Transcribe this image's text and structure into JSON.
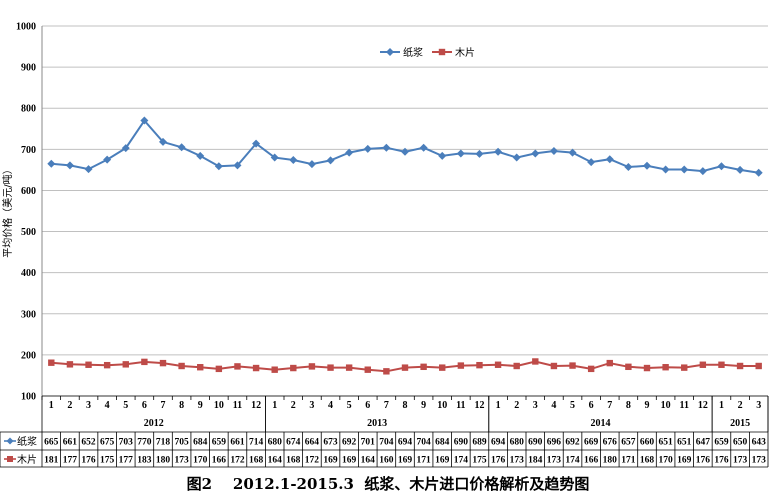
{
  "chart_data": {
    "type": "line",
    "title": "图2    2012.1-2015.3  纸浆、木片进口价格解析及趋势图",
    "ylabel": "平均价格（美元/吨）",
    "ylim": [
      100,
      1000
    ],
    "yticks": [
      100,
      200,
      300,
      400,
      500,
      600,
      700,
      800,
      900,
      1000
    ],
    "categories": [
      "1",
      "2",
      "3",
      "4",
      "5",
      "6",
      "7",
      "8",
      "9",
      "10",
      "11",
      "12",
      "1",
      "2",
      "3",
      "4",
      "5",
      "6",
      "7",
      "8",
      "9",
      "10",
      "11",
      "12",
      "1",
      "2",
      "3",
      "4",
      "5",
      "6",
      "7",
      "8",
      "9",
      "10",
      "11",
      "12",
      "1",
      "2",
      "3"
    ],
    "years": [
      {
        "label": "2012",
        "start": 0,
        "count": 12
      },
      {
        "label": "2013",
        "start": 12,
        "count": 12
      },
      {
        "label": "2014",
        "start": 24,
        "count": 12
      },
      {
        "label": "2015",
        "start": 36,
        "count": 3
      }
    ],
    "series": [
      {
        "name": "纸浆",
        "color": "#4a7ebb",
        "marker": "diamond",
        "values": [
          665,
          661,
          652,
          675,
          703,
          770,
          718,
          705,
          684,
          659,
          661,
          714,
          680,
          674,
          664,
          673,
          692,
          701,
          704,
          694,
          704,
          684,
          690,
          689,
          694,
          680,
          690,
          696,
          692,
          669,
          676,
          657,
          660,
          651,
          651,
          647,
          659,
          650,
          643
        ]
      },
      {
        "name": "木片",
        "color": "#be4b48",
        "marker": "square",
        "values": [
          181,
          177,
          176,
          175,
          177,
          183,
          180,
          173,
          170,
          166,
          172,
          168,
          164,
          168,
          172,
          169,
          169,
          164,
          160,
          169,
          171,
          169,
          174,
          175,
          176,
          173,
          184,
          173,
          174,
          166,
          180,
          171,
          168,
          170,
          169,
          176,
          176,
          173,
          173
        ]
      }
    ],
    "legend": "top-right",
    "grid": true
  }
}
